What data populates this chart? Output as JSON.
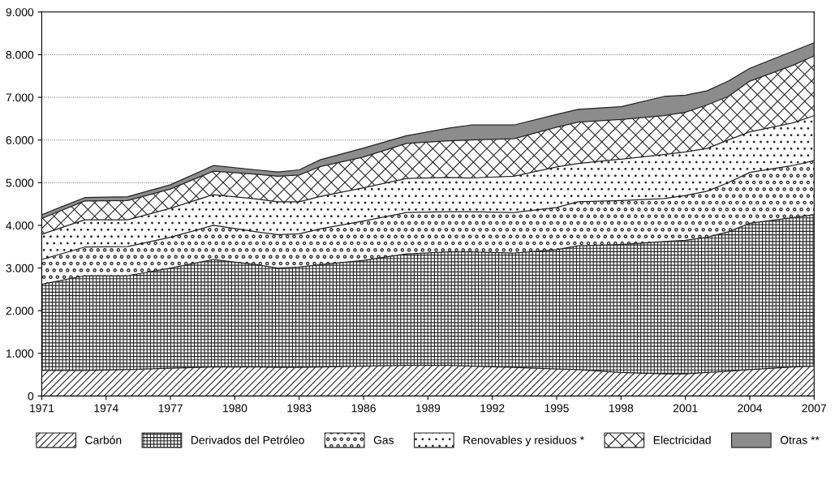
{
  "chart_data": {
    "type": "area",
    "stacked": true,
    "x": [
      1971,
      1973,
      1975,
      1977,
      1979,
      1981,
      1982,
      1983,
      1984,
      1986,
      1988,
      1990,
      1991,
      1993,
      1995,
      1996,
      1998,
      2000,
      2001,
      2002,
      2003,
      2004,
      2006,
      2007
    ],
    "series": [
      {
        "name": "Carbón",
        "color": "#ffffff",
        "values": [
          600,
          600,
          620,
          650,
          680,
          680,
          670,
          670,
          680,
          700,
          720,
          720,
          700,
          670,
          630,
          620,
          550,
          520,
          520,
          550,
          580,
          620,
          680,
          700
        ]
      },
      {
        "name": "Derivados del Petróleo",
        "color": "#ffffff",
        "values": [
          2020,
          2220,
          2200,
          2350,
          2520,
          2400,
          2330,
          2350,
          2400,
          2480,
          2610,
          2660,
          2680,
          2680,
          2800,
          2900,
          3000,
          3100,
          3130,
          3170,
          3270,
          3430,
          3500,
          3550
        ]
      },
      {
        "name": "Gas",
        "color": "#ffffff",
        "values": [
          580,
          670,
          680,
          720,
          800,
          770,
          780,
          780,
          840,
          920,
          970,
          940,
          940,
          950,
          990,
          1030,
          1030,
          1010,
          1050,
          1080,
          1150,
          1190,
          1220,
          1270
        ]
      },
      {
        "name": "Renovables y residuos *",
        "color": "#ffffff",
        "values": [
          590,
          640,
          630,
          680,
          720,
          770,
          770,
          750,
          760,
          780,
          800,
          800,
          790,
          850,
          950,
          900,
          970,
          1030,
          1020,
          1000,
          1000,
          950,
          1000,
          1050
        ]
      },
      {
        "name": "Electricidad",
        "color": "#ffffff",
        "values": [
          370,
          440,
          450,
          450,
          550,
          580,
          600,
          630,
          700,
          720,
          820,
          860,
          890,
          880,
          930,
          970,
          930,
          910,
          930,
          1020,
          1020,
          1190,
          1350,
          1400
        ]
      },
      {
        "name": "Otras **",
        "color": "#8c8c8c",
        "values": [
          90,
          80,
          90,
          100,
          130,
          100,
          100,
          120,
          160,
          210,
          180,
          300,
          350,
          320,
          300,
          300,
          300,
          450,
          400,
          330,
          360,
          300,
          330,
          310
        ]
      }
    ],
    "xlim": [
      1971,
      2007
    ],
    "xticks": [
      1971,
      1974,
      1977,
      1980,
      1983,
      1986,
      1989,
      1992,
      1995,
      1998,
      2001,
      2004,
      2007
    ],
    "ylim": [
      0,
      9000
    ],
    "yticks": [
      0,
      {
        "value": 1000,
        "label": "1.000"
      },
      {
        "value": 2000,
        "label": "2.000"
      },
      {
        "value": 3000,
        "label": "3.000"
      },
      {
        "value": 4000,
        "label": "4.000"
      },
      {
        "value": 5000,
        "label": "5.000"
      },
      {
        "value": 6000,
        "label": "6.000"
      },
      {
        "value": 7000,
        "label": "7.000"
      },
      {
        "value": 8000,
        "label": "8.000"
      },
      {
        "value": 9000,
        "label": "9.000"
      }
    ],
    "grid": "y",
    "legend": "bottom"
  }
}
